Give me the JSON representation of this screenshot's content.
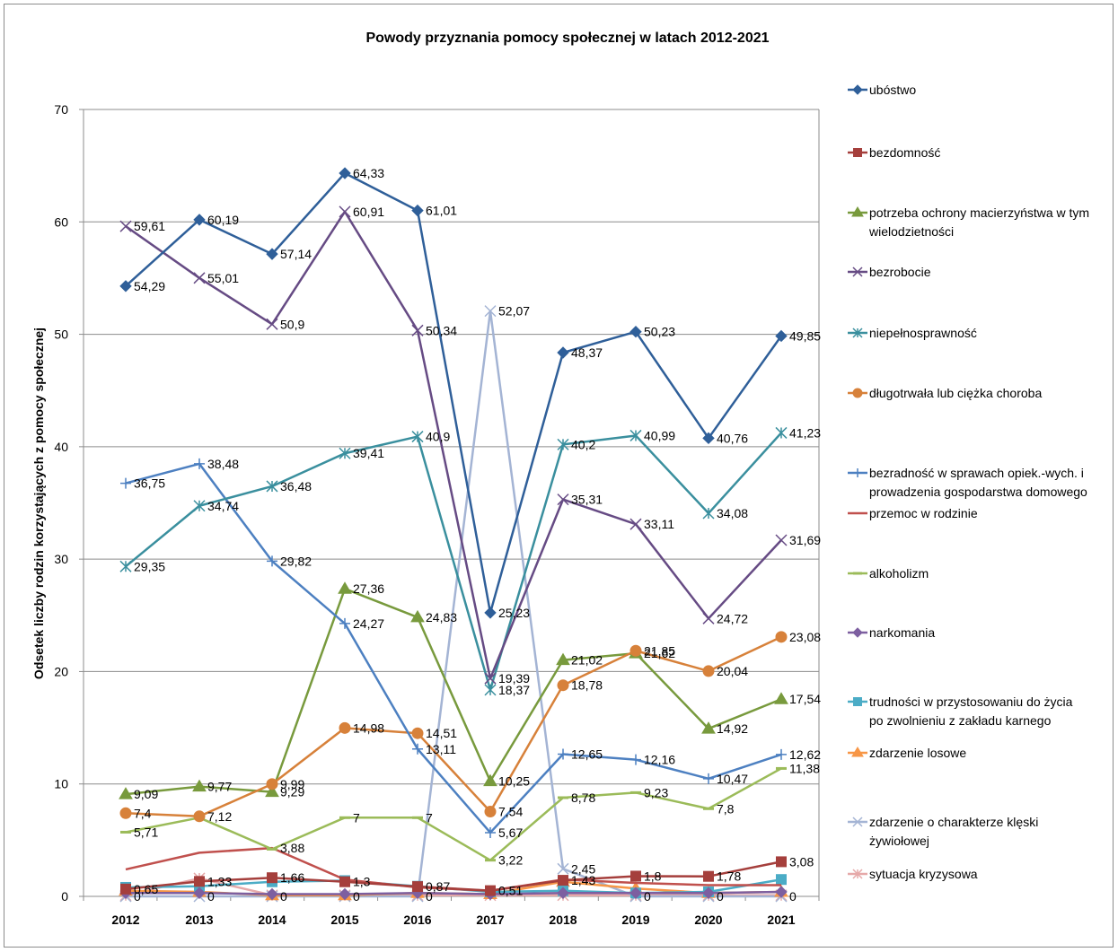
{
  "chart_data": {
    "type": "line",
    "title": "Powody przyznania pomocy społecznej w latach 2012-2021",
    "xlabel": "",
    "ylabel": "Odsetek liczby rodzin korzystających z pomocy społecznej",
    "ylim": [
      0,
      70
    ],
    "yticks": [
      "0",
      "10",
      "20",
      "30",
      "40",
      "50",
      "60",
      "70"
    ],
    "grid": true,
    "legend_position": "right",
    "categories": [
      "2012",
      "2013",
      "2014",
      "2015",
      "2016",
      "2017",
      "2018",
      "2019",
      "2020",
      "2021"
    ],
    "series": [
      {
        "name": "ubóstwo",
        "color": "#2f5f99",
        "marker": "diamond",
        "values": [
          54.29,
          60.19,
          57.14,
          64.33,
          61.01,
          25.23,
          48.37,
          50.23,
          40.76,
          49.85
        ],
        "labels": [
          "54,29",
          "60,19",
          "57,14",
          "64,33",
          "61,01",
          "25,23",
          "48,37",
          "50,23",
          "40,76",
          "49,85"
        ]
      },
      {
        "name": "bezdomność",
        "color": "#a53f3c",
        "marker": "square",
        "values": [
          0.65,
          1.33,
          1.66,
          1.3,
          0.87,
          0.51,
          1.43,
          1.8,
          1.78,
          3.08
        ],
        "labels": [
          "0,65",
          "1,33",
          "1,66",
          "1,3",
          "0,87",
          "0,51",
          "1,43",
          "1,8",
          "1,78",
          "3,08"
        ]
      },
      {
        "name": "potrzeba ochrony macierzyństwa w tym wielodzietności",
        "color": "#789a3d",
        "marker": "triangle",
        "values": [
          9.09,
          9.77,
          9.29,
          27.36,
          24.83,
          10.25,
          21.02,
          21.62,
          14.92,
          17.54
        ],
        "labels": [
          "9,09",
          "9,77",
          "9,29",
          "27,36",
          "24,83",
          "10,25",
          "21,02",
          "21,62",
          "14,92",
          "17,54"
        ]
      },
      {
        "name": "bezrobocie",
        "color": "#664b84",
        "marker": "x",
        "values": [
          59.61,
          55.01,
          50.9,
          60.91,
          50.34,
          19.39,
          35.31,
          33.11,
          24.72,
          31.69
        ],
        "labels": [
          "59,61",
          "55,01",
          "50,9",
          "60,91",
          "50,34",
          "19,39",
          "35,31",
          "33,11",
          "24,72",
          "31,69"
        ]
      },
      {
        "name": "niepełnosprawność",
        "color": "#3a8f9e",
        "marker": "star",
        "values": [
          29.35,
          34.74,
          36.48,
          39.41,
          40.9,
          18.37,
          40.2,
          40.99,
          34.08,
          41.23
        ],
        "labels": [
          "29,35",
          "34,74",
          "36,48",
          "39,41",
          "40,9",
          "18,37",
          "40,2",
          "40,99",
          "34,08",
          "41,23"
        ]
      },
      {
        "name": "długotrwała lub ciężka choroba",
        "color": "#d7813a",
        "marker": "circle",
        "values": [
          7.4,
          7.12,
          9.99,
          14.98,
          14.51,
          7.54,
          18.78,
          21.85,
          20.04,
          23.08
        ],
        "labels": [
          "7,4",
          "7,12",
          "9,99",
          "14,98",
          "14,51",
          "7,54",
          "18,78",
          "21,85",
          "20,04",
          "23,08"
        ]
      },
      {
        "name": "bezradność w sprawach opiek.-wych. i prowadzenia gospodarstwa domowego",
        "color": "#4d80c1",
        "marker": "plus",
        "values": [
          36.75,
          38.48,
          29.82,
          24.27,
          13.11,
          5.67,
          12.65,
          12.16,
          10.47,
          12.62
        ],
        "labels": [
          "36,75",
          "38,48",
          "29,82",
          "24,27",
          "13,11",
          "5,67",
          "12,65",
          "12,16",
          "10,47",
          "12,62"
        ]
      },
      {
        "name": "przemoc w rodzinie",
        "color": "#c0504d",
        "marker": "none",
        "values": [
          2.4,
          3.88,
          4.3,
          1.5,
          0.8,
          0.5,
          1.5,
          1.2,
          1.0,
          1.0
        ],
        "labels": [
          "",
          "",
          "3,88",
          "",
          "",
          "",
          "",
          "",
          "",
          ""
        ]
      },
      {
        "name": "alkoholizm",
        "color": "#9bbb59",
        "marker": "dash",
        "values": [
          5.71,
          7.0,
          4.2,
          7.0,
          7.0,
          3.22,
          8.78,
          9.23,
          7.8,
          11.38
        ],
        "labels": [
          "5,71",
          "",
          "",
          "7",
          "7",
          "3,22",
          "8,78",
          "9,23",
          "7,8",
          "11,38"
        ]
      },
      {
        "name": "narkomania",
        "color": "#7d5fa0",
        "marker": "diamond",
        "values": [
          0.3,
          0.3,
          0.2,
          0.2,
          0.3,
          0.2,
          0.3,
          0.3,
          0.3,
          0.4
        ],
        "labels": [
          "",
          "",
          "",
          "",
          "",
          "",
          "",
          "",
          "",
          ""
        ]
      },
      {
        "name": "trudności w przystosowaniu do życia po zwolnieniu z zakładu karnego",
        "color": "#4bacc6",
        "marker": "square",
        "values": [
          0.8,
          0.9,
          1.3,
          1.4,
          0.9,
          0.4,
          0.5,
          0.3,
          0.4,
          1.5
        ],
        "labels": [
          "",
          "",
          "",
          "",
          "",
          "",
          "",
          "",
          "",
          ""
        ]
      },
      {
        "name": "zdarzenie losowe",
        "color": "#f79646",
        "marker": "triangle",
        "values": [
          0.5,
          0.4,
          0.1,
          0.1,
          0.3,
          0.2,
          1.3,
          0.7,
          0.3,
          0.4
        ],
        "labels": [
          "",
          "",
          "",
          "",
          "",
          "",
          "",
          "",
          "",
          ""
        ]
      },
      {
        "name": "zdarzenie o charakterze klęski żywiołowej",
        "color": "#a4b4d4",
        "marker": "x",
        "values": [
          0,
          0,
          0,
          0,
          0,
          52.07,
          2.45,
          0,
          0,
          0
        ],
        "labels": [
          "0",
          "0",
          "0",
          "0",
          "0",
          "52,07",
          "2,45",
          "0",
          "0",
          "0"
        ]
      },
      {
        "name": "sytuacja kryzysowa",
        "color": "#e6a9a9",
        "marker": "star",
        "values": [
          0.1,
          1.6,
          0.1,
          0.1,
          0.1,
          0.1,
          0.1,
          0.1,
          0.1,
          0.1
        ],
        "labels": [
          "",
          "",
          "",
          "",
          "",
          "",
          "",
          "",
          "",
          ""
        ]
      }
    ]
  }
}
